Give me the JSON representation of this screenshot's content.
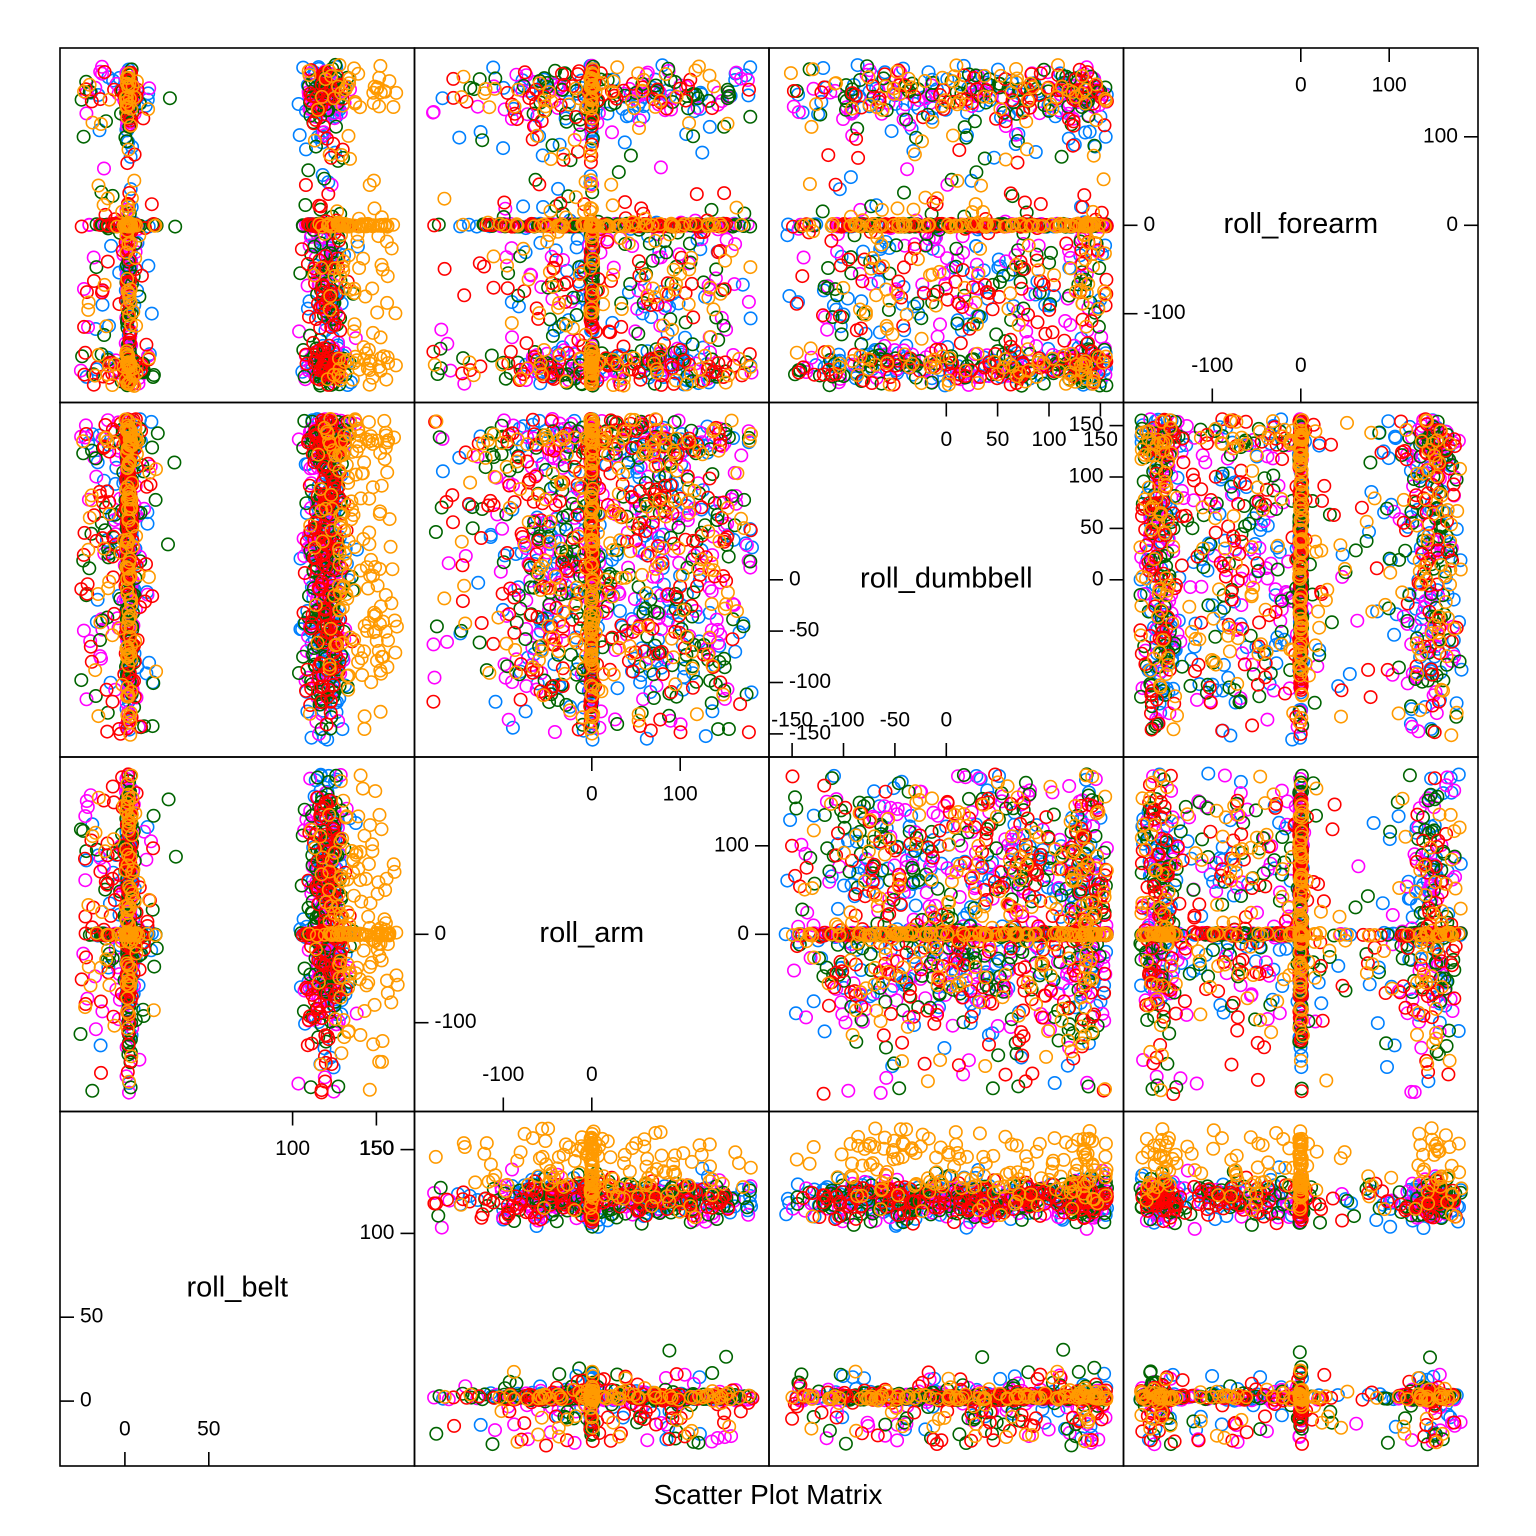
{
  "chart_data": {
    "type": "scatter",
    "title": "",
    "xlabel": "Scatter Plot Matrix",
    "variables": [
      {
        "name": "roll_belt",
        "range": [
          -28,
          162
        ],
        "ticks_low": [
          {
            "v": 0,
            "label": "0"
          },
          {
            "v": 50,
            "label": "50"
          }
        ],
        "ticks_high": [
          {
            "v": 100,
            "label": "100"
          },
          {
            "v": 150,
            "label": "150"
          }
        ]
      },
      {
        "name": "roll_arm",
        "range": [
          -180,
          180
        ],
        "ticks_low": [
          {
            "v": -100,
            "label": "-100"
          },
          {
            "v": 0,
            "label": "0"
          }
        ],
        "ticks_high": [
          {
            "v": 0,
            "label": "0"
          },
          {
            "v": 100,
            "label": "100"
          }
        ]
      },
      {
        "name": "roll_dumbbell",
        "range": [
          -155,
          155
        ],
        "ticks_low": [
          {
            "v": -150,
            "label": "-150"
          },
          {
            "v": -100,
            "label": "-100"
          },
          {
            "v": -50,
            "label": "-50"
          },
          {
            "v": 0,
            "label": "0"
          }
        ],
        "ticks_high": [
          {
            "v": 0,
            "label": "0"
          },
          {
            "v": 50,
            "label": "50"
          },
          {
            "v": 100,
            "label": "100"
          },
          {
            "v": 150,
            "label": "150"
          }
        ]
      },
      {
        "name": "roll_forearm",
        "range": [
          -180,
          180
        ],
        "ticks_low": [
          {
            "v": -100,
            "label": "-100"
          },
          {
            "v": 0,
            "label": "0"
          }
        ],
        "ticks_high": [
          {
            "v": 0,
            "label": "0"
          },
          {
            "v": 100,
            "label": "100"
          }
        ]
      }
    ],
    "series": [
      {
        "color": "#0080ff"
      },
      {
        "color": "#ff00ff"
      },
      {
        "color": "#006400"
      },
      {
        "color": "#ff0000"
      },
      {
        "color": "#ff9a00"
      }
    ],
    "grid": false,
    "legend": "none"
  }
}
